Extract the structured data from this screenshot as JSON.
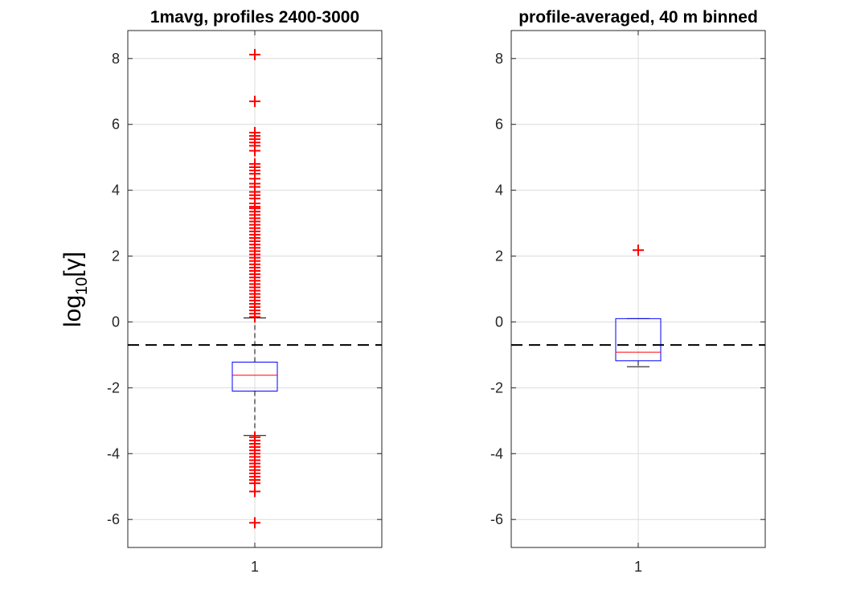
{
  "ylabel": {
    "base": "log",
    "sub": "10",
    "arg": "[γ]"
  },
  "threshold_line": {
    "y": -0.7,
    "style": "dashed",
    "color": "#000000"
  },
  "colors": {
    "box": "#0000ff",
    "median": "#ff0000",
    "outlier": "#ff0000",
    "whisker": "#000000"
  },
  "chart_data": [
    {
      "type": "box",
      "title": "1mavg, profiles 2400-3000",
      "categories": [
        "1"
      ],
      "ylim": [
        -6.85,
        8.85
      ],
      "yticks": [
        -6,
        -4,
        -2,
        0,
        2,
        4,
        6,
        8
      ],
      "grid": true,
      "box": {
        "q1": -2.1,
        "median": -1.62,
        "q3": -1.22,
        "whisker_low": -3.45,
        "whisker_high": 0.12
      },
      "outliers_high": [
        8.12,
        6.7,
        5.75,
        5.65,
        5.55,
        5.45,
        5.35,
        5.2,
        4.8,
        4.7,
        4.6,
        4.5,
        4.35,
        4.2,
        4.1,
        3.95,
        3.85,
        3.75,
        3.6,
        3.5,
        3.45,
        3.35,
        3.25,
        3.15,
        3.05,
        2.95,
        2.85,
        2.75,
        2.65,
        2.55,
        2.45,
        2.35,
        2.25,
        2.15,
        2.05,
        1.95,
        1.85,
        1.75,
        1.65,
        1.55,
        1.45,
        1.35,
        1.25,
        1.15,
        1.05,
        0.95,
        0.85,
        0.75,
        0.65,
        0.55,
        0.45,
        0.35,
        0.25,
        0.15
      ],
      "outliers_low": [
        -3.5,
        -3.6,
        -3.7,
        -3.8,
        -3.9,
        -4.0,
        -4.1,
        -4.2,
        -4.3,
        -4.4,
        -4.5,
        -4.6,
        -4.7,
        -4.8,
        -4.9,
        -5.15,
        -6.1
      ]
    },
    {
      "type": "box",
      "title": "profile-averaged, 40 m binned",
      "categories": [
        "1"
      ],
      "ylim": [
        -6.85,
        8.85
      ],
      "yticks": [
        -6,
        -4,
        -2,
        0,
        2,
        4,
        6,
        8
      ],
      "grid": true,
      "box": {
        "q1": -1.18,
        "median": -0.92,
        "q3": 0.1,
        "whisker_low": -1.36,
        "whisker_high": 0.1
      },
      "outliers_high": [
        2.18
      ],
      "outliers_low": []
    }
  ]
}
